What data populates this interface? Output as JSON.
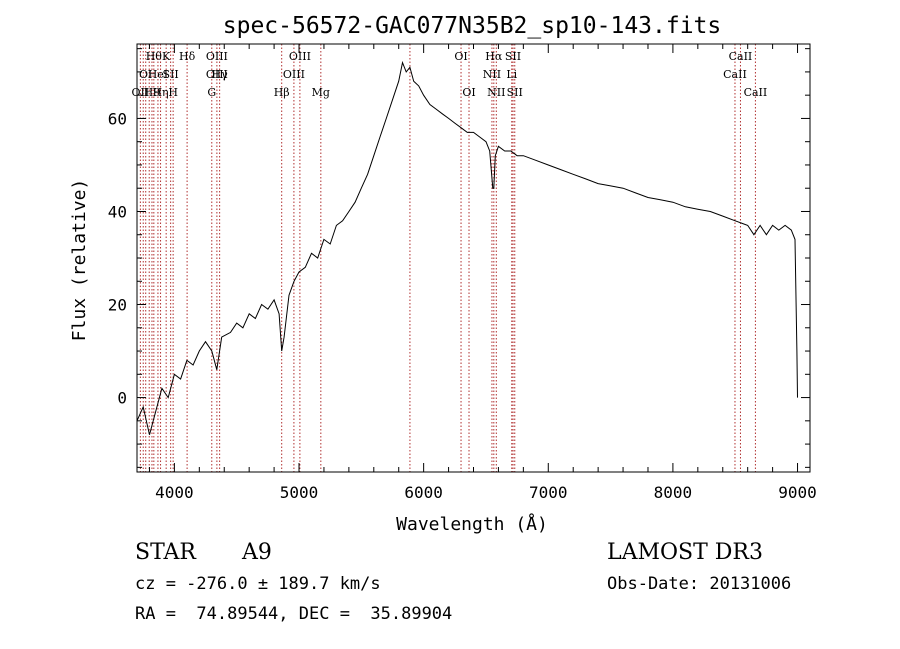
{
  "chart_data": {
    "type": "line",
    "title": "spec-56572-GAC077N35B2_sp10-143.fits",
    "xlabel": "Wavelength (Å)",
    "ylabel": "Flux (relative)",
    "xlim": [
      3700,
      9100
    ],
    "ylim": [
      -16,
      76
    ],
    "xticks": [
      4000,
      5000,
      6000,
      7000,
      8000,
      9000
    ],
    "yticks": [
      0,
      20,
      40,
      60
    ],
    "xtick_labels": [
      "4000",
      "5000",
      "6000",
      "7000",
      "8000",
      "9000"
    ],
    "ytick_labels": [
      "0",
      "20",
      "40",
      "60"
    ],
    "series": [
      {
        "name": "flux",
        "x": [
          3700,
          3750,
          3800,
          3850,
          3900,
          3950,
          4000,
          4050,
          4100,
          4150,
          4200,
          4250,
          4300,
          4340,
          4380,
          4450,
          4500,
          4550,
          4600,
          4650,
          4700,
          4750,
          4800,
          4840,
          4861,
          4880,
          4920,
          4960,
          5000,
          5050,
          5100,
          5150,
          5200,
          5250,
          5300,
          5350,
          5400,
          5450,
          5500,
          5550,
          5600,
          5650,
          5700,
          5750,
          5800,
          5830,
          5860,
          5890,
          5920,
          5960,
          6000,
          6050,
          6100,
          6150,
          6200,
          6250,
          6300,
          6350,
          6400,
          6450,
          6500,
          6530,
          6555,
          6563,
          6575,
          6600,
          6650,
          6700,
          6750,
          6800,
          6900,
          7000,
          7100,
          7200,
          7300,
          7400,
          7500,
          7600,
          7700,
          7800,
          7900,
          8000,
          8100,
          8200,
          8300,
          8400,
          8500,
          8550,
          8600,
          8650,
          8700,
          8750,
          8800,
          8850,
          8900,
          8950,
          8980,
          8995,
          9000
        ],
        "y": [
          -5,
          -2,
          -8,
          -3,
          2,
          0,
          5,
          4,
          8,
          7,
          10,
          12,
          10,
          6,
          13,
          14,
          16,
          15,
          18,
          17,
          20,
          19,
          21,
          18,
          10,
          13,
          22,
          25,
          27,
          28,
          31,
          30,
          34,
          33,
          37,
          38,
          40,
          42,
          45,
          48,
          52,
          56,
          60,
          64,
          68,
          72,
          70,
          71,
          68,
          67,
          65,
          63,
          62,
          61,
          60,
          59,
          58,
          57,
          57,
          56,
          55,
          53,
          45,
          45,
          52,
          54,
          53,
          53,
          52,
          52,
          51,
          50,
          49,
          48,
          47,
          46,
          45.5,
          45,
          44,
          43,
          42.5,
          42,
          41,
          40.5,
          40,
          39,
          38,
          37.5,
          37,
          35,
          37,
          35,
          37,
          36,
          37,
          36,
          34,
          10,
          0
        ]
      }
    ],
    "lines": [
      {
        "wl": 3727,
        "rows": [
          2
        ],
        "label": "OII"
      },
      {
        "wl": 3750,
        "rows": [],
        "label": ""
      },
      {
        "wl": 3770,
        "rows": [
          1
        ],
        "label": "OI"
      },
      {
        "wl": 3798,
        "rows": [],
        "label": ""
      },
      {
        "wl": 3820,
        "rows": [
          2
        ],
        "label": "H9"
      },
      {
        "wl": 3835,
        "rows": [
          0
        ],
        "label": "Hθ"
      },
      {
        "wl": 3868,
        "rows": [
          1
        ],
        "label": "HeI"
      },
      {
        "wl": 3889,
        "rows": [
          2
        ],
        "label": "Hη"
      },
      {
        "wl": 3934,
        "rows": [
          0
        ],
        "label": "K"
      },
      {
        "wl": 3970,
        "rows": [
          1
        ],
        "label": "SII"
      },
      {
        "wl": 3990,
        "rows": [
          2
        ],
        "label": "H"
      },
      {
        "wl": 4102,
        "rows": [
          0
        ],
        "label": "Hδ"
      },
      {
        "wl": 4300,
        "rows": [
          2
        ],
        "label": "G"
      },
      {
        "wl": 4341,
        "rows": [
          0,
          1
        ],
        "label": "OIII"
      },
      {
        "wl": 4363,
        "rows": [
          1
        ],
        "label": "Hγ"
      },
      {
        "wl": 4861,
        "rows": [
          2
        ],
        "label": "Hβ"
      },
      {
        "wl": 4959,
        "rows": [
          1
        ],
        "label": "OIII"
      },
      {
        "wl": 5007,
        "rows": [
          0
        ],
        "label": "OIII"
      },
      {
        "wl": 5175,
        "rows": [
          2
        ],
        "label": "Mg"
      },
      {
        "wl": 5890,
        "rows": [],
        "label": ""
      },
      {
        "wl": 6300,
        "rows": [
          0
        ],
        "label": "OI"
      },
      {
        "wl": 6364,
        "rows": [
          2
        ],
        "label": "OI"
      },
      {
        "wl": 6548,
        "rows": [
          1
        ],
        "label": "NII"
      },
      {
        "wl": 6563,
        "rows": [
          0
        ],
        "label": "Hα"
      },
      {
        "wl": 6583,
        "rows": [
          2
        ],
        "label": "NII"
      },
      {
        "wl": 6707,
        "rows": [
          1
        ],
        "label": "Li"
      },
      {
        "wl": 6717,
        "rows": [
          0
        ],
        "label": "SII"
      },
      {
        "wl": 6731,
        "rows": [
          2
        ],
        "label": "SII"
      },
      {
        "wl": 8498,
        "rows": [
          1
        ],
        "label": "CaII"
      },
      {
        "wl": 8542,
        "rows": [
          0
        ],
        "label": "CaII"
      },
      {
        "wl": 8662,
        "rows": [
          2
        ],
        "label": "CaII"
      }
    ],
    "line_color": "#b03030"
  },
  "info": {
    "class_label": "STAR",
    "subclass": "A9",
    "survey": "LAMOST DR3",
    "cz": "cz = -276.0 ± 189.7 km/s",
    "obs_date": "Obs-Date: 20131006",
    "coords": "RA =  74.89544, DEC =  35.89904"
  }
}
